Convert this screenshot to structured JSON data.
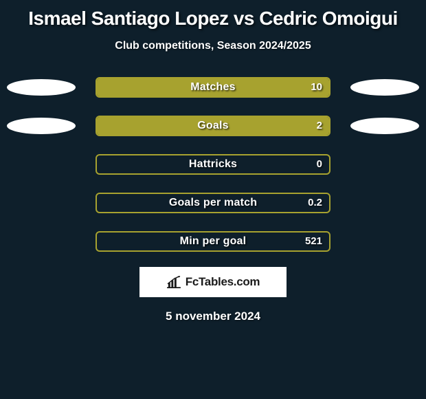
{
  "background_color": "#0e1f2b",
  "text_color": "#ffffff",
  "title": "Ismael Santiago Lopez vs Cedric Omoigui",
  "title_fontsize": 28,
  "subtitle": "Club competitions, Season 2024/2025",
  "subtitle_fontsize": 16,
  "ellipse_color": "#ffffff",
  "bar_border_color": "#a7a22f",
  "bar_fill_color": "#a7a22f",
  "stats": [
    {
      "label": "Matches",
      "value": "10",
      "fill_pct": 100,
      "show_left_ellipse": true,
      "show_right_ellipse": true
    },
    {
      "label": "Goals",
      "value": "2",
      "fill_pct": 100,
      "show_left_ellipse": true,
      "show_right_ellipse": true
    },
    {
      "label": "Hattricks",
      "value": "0",
      "fill_pct": 0,
      "show_left_ellipse": false,
      "show_right_ellipse": false
    },
    {
      "label": "Goals per match",
      "value": "0.2",
      "fill_pct": 0,
      "show_left_ellipse": false,
      "show_right_ellipse": false
    },
    {
      "label": "Min per goal",
      "value": "521",
      "fill_pct": 0,
      "show_left_ellipse": false,
      "show_right_ellipse": false
    }
  ],
  "logo": {
    "text": "FcTables.com",
    "icon_name": "bar-chart-icon",
    "bg": "#ffffff",
    "fg": "#1a1a1a"
  },
  "date": "5 november 2024"
}
